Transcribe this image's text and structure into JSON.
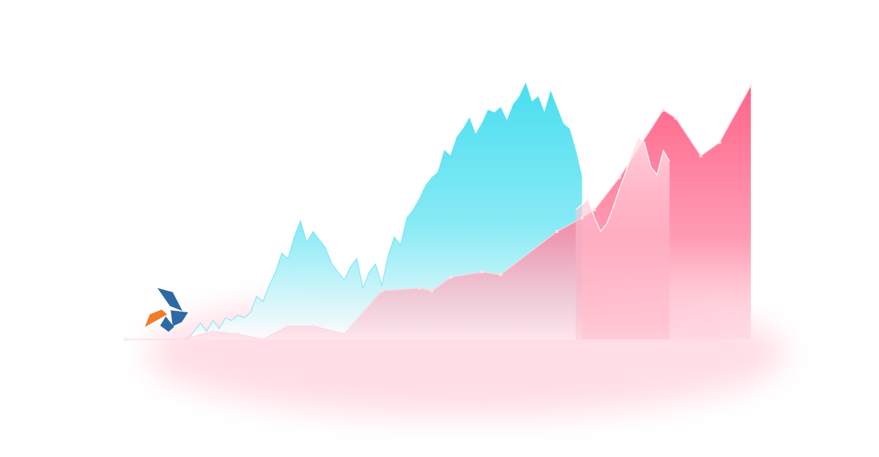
{
  "chart_data": {
    "type": "area",
    "title": "",
    "xlabel": "",
    "ylabel": "",
    "xlim": [
      0,
      100
    ],
    "ylim": [
      0,
      100
    ],
    "grid": false,
    "legend": "none",
    "series": [
      {
        "color": "#ff6f8f",
        "x": [
          0,
          9,
          14,
          18,
          22,
          26,
          30,
          35,
          41,
          47,
          49,
          52,
          57,
          60,
          69,
          73,
          75,
          79,
          86,
          88,
          92,
          95,
          100
        ],
        "y": [
          0,
          0,
          3,
          2,
          0,
          5,
          5,
          2,
          18,
          19,
          18,
          23,
          25,
          24,
          40,
          45,
          48,
          60,
          85,
          82,
          68,
          73,
          94
        ]
      },
      {
        "color": "#57e0ef",
        "x": [
          10,
          12,
          13,
          14,
          15,
          16,
          17,
          18,
          19,
          20,
          21,
          22,
          23,
          24,
          25,
          26,
          27,
          28,
          29,
          30,
          31,
          32,
          33,
          34,
          35,
          36,
          37,
          38,
          39,
          40,
          41,
          42,
          43,
          44,
          45,
          46,
          47,
          48,
          49,
          50,
          51,
          52,
          53,
          54,
          55,
          56,
          57,
          58,
          59,
          60,
          61,
          62,
          63,
          64,
          65,
          66,
          67,
          68,
          69,
          70,
          71,
          72,
          73
        ],
        "y": [
          0,
          6,
          3,
          7,
          4,
          8,
          7,
          9,
          8,
          10,
          16,
          14,
          20,
          25,
          32,
          30,
          38,
          44,
          36,
          40,
          37,
          34,
          28,
          25,
          22,
          27,
          30,
          19,
          25,
          28,
          20,
          31,
          38,
          35,
          45,
          48,
          52,
          57,
          60,
          62,
          70,
          68,
          75,
          78,
          82,
          76,
          80,
          85,
          84,
          86,
          81,
          87,
          90,
          95,
          88,
          90,
          84,
          92,
          86,
          80,
          78,
          70,
          60
        ]
      },
      {
        "color": "#f4b6c6",
        "x": [
          72,
          73,
          74,
          75,
          76,
          77,
          78,
          79,
          80,
          81,
          82,
          83,
          84,
          85,
          86,
          87
        ],
        "y": [
          48,
          50,
          52,
          45,
          40,
          43,
          49,
          56,
          62,
          69,
          75,
          73,
          64,
          61,
          70,
          66
        ]
      }
    ]
  },
  "logo": {
    "name": "pinwheel-logo",
    "colors": [
      "#2d6aa3",
      "#f07d2a"
    ]
  }
}
